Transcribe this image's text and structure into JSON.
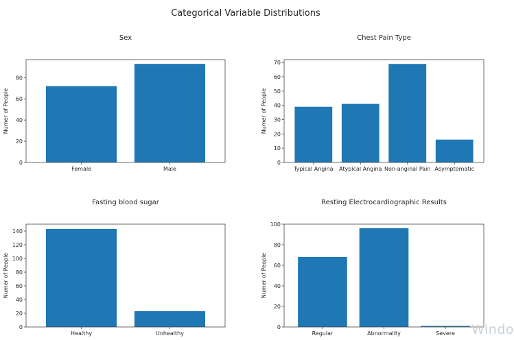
{
  "figure": {
    "title": "Categorical Variable Distributions",
    "bar_color": "#1f77b4",
    "axes_color": "#444444"
  },
  "watermark": "Windo",
  "chart_data": [
    {
      "type": "bar",
      "title": "Sex",
      "categories": [
        "Female",
        "Male"
      ],
      "values": [
        72,
        93
      ],
      "xlabel": "",
      "ylabel": "Numer of People",
      "ylim": [
        0,
        97
      ],
      "yticks": [
        0,
        20,
        40,
        60,
        80
      ]
    },
    {
      "type": "bar",
      "title": "Chest Pain Type",
      "categories": [
        "Typical Angina",
        "Atypical Angina",
        "Non-anginal Pain",
        "Asymptomatic"
      ],
      "values": [
        39,
        41,
        69,
        16
      ],
      "xlabel": "",
      "ylabel": "Numer of People",
      "ylim": [
        0,
        72
      ],
      "yticks": [
        0,
        10,
        20,
        30,
        40,
        50,
        60,
        70
      ]
    },
    {
      "type": "bar",
      "title": "Fasting blood sugar",
      "categories": [
        "Healthy",
        "Unhealthy"
      ],
      "values": [
        143,
        23
      ],
      "xlabel": "",
      "ylabel": "Numer of People",
      "ylim": [
        0,
        150
      ],
      "yticks": [
        0,
        20,
        40,
        60,
        80,
        100,
        120,
        140
      ]
    },
    {
      "type": "bar",
      "title": "Resting Electrocardiographic Results",
      "categories": [
        "Regular",
        "Abnormality",
        "Severe"
      ],
      "values": [
        68,
        96,
        1
      ],
      "xlabel": "",
      "ylabel": "Numer of People",
      "ylim": [
        0,
        100
      ],
      "yticks": [
        0,
        20,
        40,
        60,
        80,
        100
      ]
    }
  ]
}
